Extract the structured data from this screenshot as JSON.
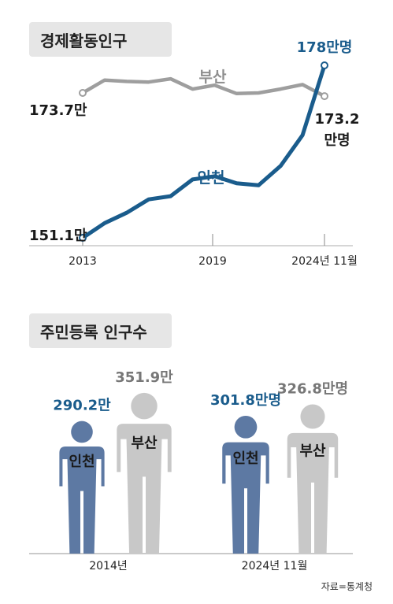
{
  "chart_data": [
    {
      "type": "line",
      "title": "경제활동인구",
      "x": [
        2013,
        2014,
        2015,
        2016,
        2017,
        2018,
        2019,
        2020,
        2021,
        2022,
        2023,
        2024
      ],
      "x_ticks": [
        "2013",
        "2019",
        "2024년 11월"
      ],
      "series": [
        {
          "name": "부산",
          "color": "#9e9e9e",
          "values": [
            173.7,
            175.7,
            175.5,
            175.4,
            175.9,
            174.3,
            174.9,
            173.6,
            173.7,
            174.3,
            175.0,
            173.2
          ],
          "start_label": "173.7만",
          "end_label": "173.2 만명"
        },
        {
          "name": "인천",
          "color": "#1a5c8c",
          "values": [
            151.1,
            153.4,
            155.0,
            157.1,
            157.6,
            160.2,
            160.7,
            159.6,
            159.3,
            162.3,
            167.1,
            178.0
          ],
          "start_label": "151.1만",
          "end_label": "178만명"
        }
      ]
    },
    {
      "type": "bar",
      "title": "주민등록 인구수",
      "categories": [
        "2014년",
        "2024년 11월"
      ],
      "series": [
        {
          "name": "인천",
          "color": "#5d79a3",
          "values": [
            290.2,
            301.8
          ],
          "labels": [
            "290.2만",
            "301.8만명"
          ]
        },
        {
          "name": "부산",
          "color": "#c8c8c8",
          "values": [
            351.9,
            326.8
          ],
          "labels": [
            "351.9만",
            "326.8만명"
          ]
        }
      ]
    }
  ],
  "source": "자료=통계청"
}
